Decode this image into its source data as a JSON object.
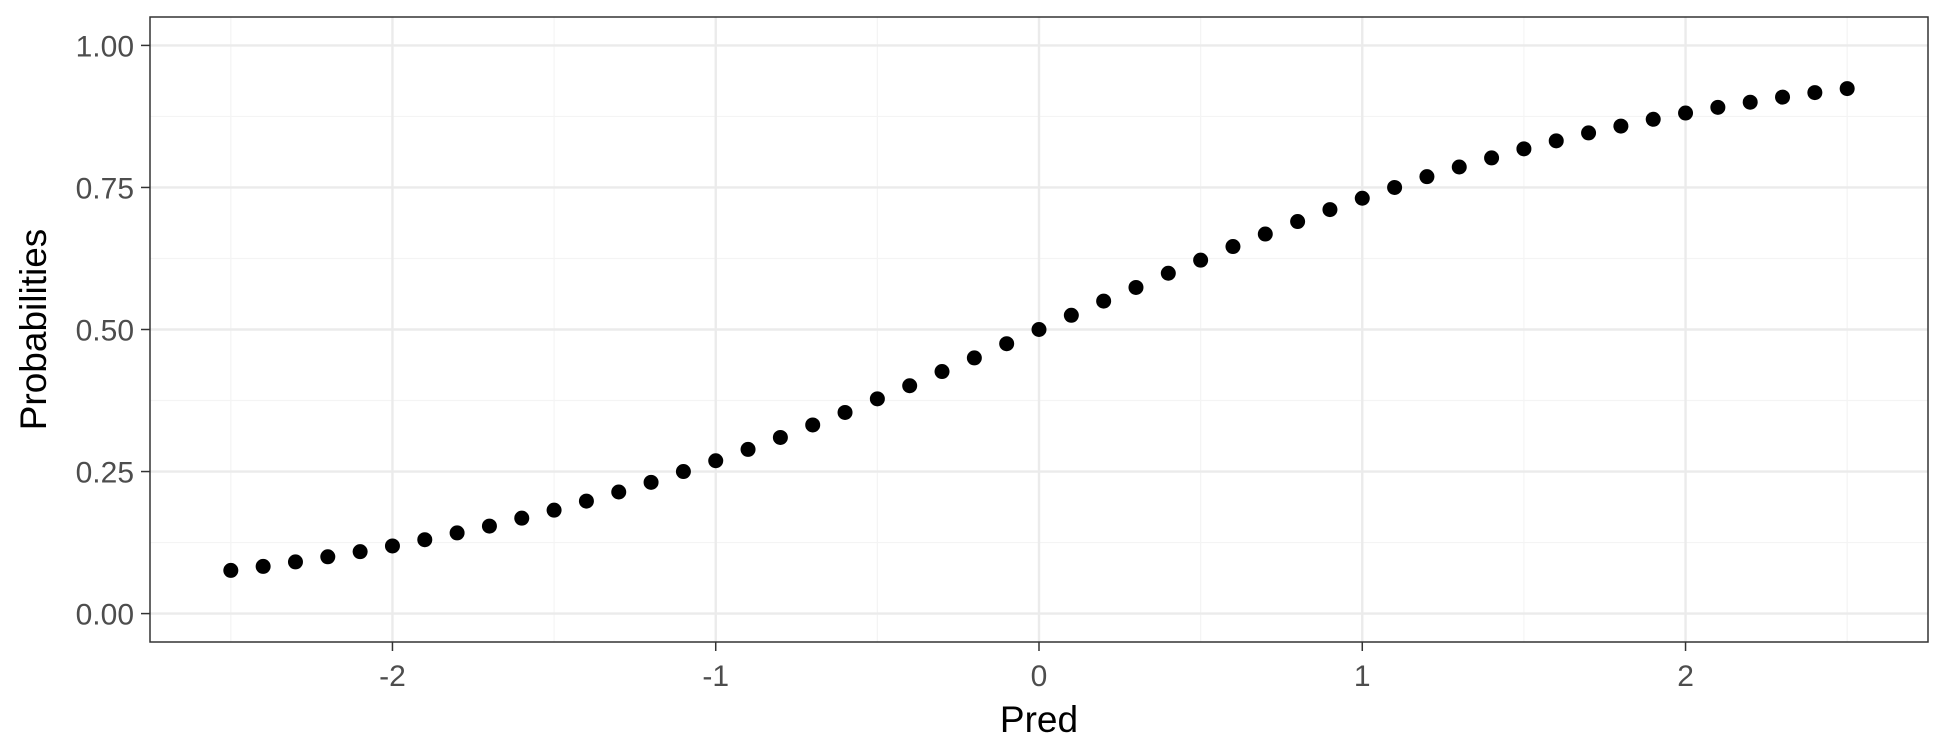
{
  "chart_data": {
    "type": "scatter",
    "title": "",
    "xlabel": "Pred",
    "ylabel": "Probabilities",
    "xlim": [
      -2.75,
      2.75
    ],
    "ylim": [
      -0.05,
      1.05
    ],
    "x_ticks": [
      -2,
      -1,
      0,
      1,
      2
    ],
    "x_tick_labels": [
      "-2",
      "-1",
      "0",
      "1",
      "2"
    ],
    "y_ticks": [
      0,
      0.25,
      0.5,
      0.75,
      1
    ],
    "y_tick_labels": [
      "0.00",
      "0.25",
      "0.50",
      "0.75",
      "1.00"
    ],
    "grid": true,
    "legend": "none",
    "colors": {
      "point": "#000000",
      "grid_major": "#ebebeb",
      "grid_minor": "#f4f4f4",
      "panel_border": "#333333"
    },
    "series": [
      {
        "x": [
          -2.5,
          -2.4,
          -2.3,
          -2.2,
          -2.1,
          -2.0,
          -1.9,
          -1.8,
          -1.7,
          -1.6,
          -1.5,
          -1.4,
          -1.3,
          -1.2,
          -1.1,
          -1.0,
          -0.9,
          -0.8,
          -0.7,
          -0.6,
          -0.5,
          -0.4,
          -0.3,
          -0.2,
          -0.1,
          0.0,
          0.1,
          0.2,
          0.3,
          0.4,
          0.5,
          0.6,
          0.7,
          0.8,
          0.9,
          1.0,
          1.1,
          1.2,
          1.3,
          1.4,
          1.5,
          1.6,
          1.7,
          1.8,
          1.9,
          2.0,
          2.1,
          2.2,
          2.3,
          2.4,
          2.5
        ],
        "y": [
          0.076,
          0.083,
          0.091,
          0.1,
          0.109,
          0.119,
          0.13,
          0.142,
          0.154,
          0.168,
          0.182,
          0.198,
          0.214,
          0.231,
          0.25,
          0.269,
          0.289,
          0.31,
          0.332,
          0.354,
          0.378,
          0.401,
          0.426,
          0.45,
          0.475,
          0.5,
          0.525,
          0.55,
          0.574,
          0.599,
          0.622,
          0.646,
          0.668,
          0.69,
          0.711,
          0.731,
          0.75,
          0.769,
          0.786,
          0.802,
          0.818,
          0.832,
          0.846,
          0.858,
          0.87,
          0.881,
          0.891,
          0.9,
          0.909,
          0.917,
          0.924
        ]
      }
    ]
  }
}
